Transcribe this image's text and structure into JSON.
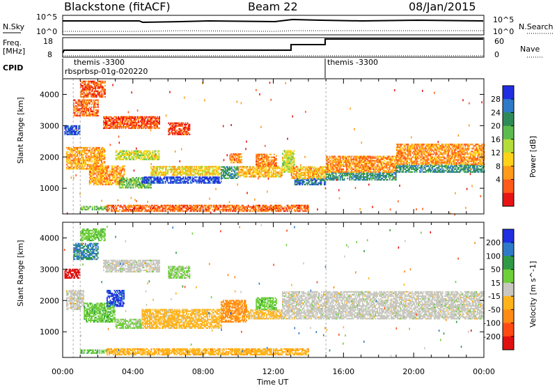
{
  "header": {
    "station": "Blackstone (fitACF)",
    "beam": "Beam 22",
    "date": "08/Jan/2015"
  },
  "top_panels": {
    "nsky_label": "N.Sky",
    "nsky_ticks": [
      "10^5",
      "10^0"
    ],
    "nsky_right_ticks": [
      "10^5",
      "10^0"
    ],
    "nsearch_label": "N.Search",
    "freq_label": "Freq.",
    "freq_unit": "[MHz]",
    "freq_ticks": [
      "18",
      "8"
    ],
    "nave_label": "Nave",
    "nave_ticks": [
      "60",
      "0"
    ],
    "cpid_label": "CPID",
    "cpid_entries": [
      {
        "text": "themis -3300"
      },
      {
        "text": "rbsprbsp-01g-020220"
      },
      {
        "text": "themis -3300"
      }
    ]
  },
  "colors": {
    "power_scale": [
      "#1f2ee0",
      "#2f7ac8",
      "#2e8b57",
      "#5dbb4e",
      "#b4dd3a",
      "#ffd21a",
      "#ff9a1a",
      "#ff5a1a",
      "#e81414"
    ],
    "velocity_scale": [
      "#1f2ee0",
      "#2f7ac8",
      "#2e9a46",
      "#6fcf3a",
      "#c8c8c0",
      "#ffb31a",
      "#ff8a14",
      "#ff4a14",
      "#e01010"
    ]
  },
  "chart_data": [
    {
      "type": "heatmap",
      "title": "Power",
      "ylabel": "Slant Range [km]",
      "xlabel": "Time UT",
      "x_ticks": [
        "00:00",
        "04:00",
        "08:00",
        "12:00",
        "16:00",
        "20:00",
        "00:00"
      ],
      "x_range_hours": [
        0,
        24
      ],
      "y_ticks": [
        1000,
        2000,
        3000,
        4000
      ],
      "y_range_km": [
        180,
        4500
      ],
      "colorbar_label": "Power [dB]",
      "colorbar_ticks": [
        "28",
        "24",
        "20",
        "16",
        "12",
        "8",
        "4"
      ],
      "colorbar_range": [
        0,
        30
      ],
      "echo_bands": [
        {
          "t0": 0.1,
          "t1": 1.0,
          "r0": 2700,
          "r1": 3000,
          "level": 27
        },
        {
          "t0": 0.2,
          "t1": 2.4,
          "r0": 1600,
          "r1": 2300,
          "level": 9
        },
        {
          "t0": 0.6,
          "t1": 2.0,
          "r0": 3300,
          "r1": 3800,
          "level": 6
        },
        {
          "t0": 1.0,
          "t1": 2.4,
          "r0": 3900,
          "r1": 4400,
          "level": 5
        },
        {
          "t0": 2.3,
          "t1": 5.5,
          "r0": 2900,
          "r1": 3300,
          "level": 5
        },
        {
          "t0": 6.0,
          "t1": 7.2,
          "r0": 2700,
          "r1": 3100,
          "level": 4
        },
        {
          "t0": 1.5,
          "t1": 3.5,
          "r0": 1100,
          "r1": 1700,
          "level": 9
        },
        {
          "t0": 3.2,
          "t1": 5.0,
          "r0": 1000,
          "r1": 1350,
          "level": 18
        },
        {
          "t0": 3.0,
          "t1": 5.5,
          "r0": 1900,
          "r1": 2200,
          "level": 14
        },
        {
          "t0": 4.5,
          "t1": 9.0,
          "r0": 1150,
          "r1": 1350,
          "level": 28
        },
        {
          "t0": 5.0,
          "t1": 9.0,
          "r0": 1400,
          "r1": 1700,
          "level": 12
        },
        {
          "t0": 9.0,
          "t1": 10.0,
          "r0": 1300,
          "r1": 1700,
          "level": 22
        },
        {
          "t0": 9.5,
          "t1": 10.2,
          "r0": 1800,
          "r1": 2100,
          "level": 8
        },
        {
          "t0": 10.0,
          "t1": 12.5,
          "r0": 1350,
          "r1": 1700,
          "level": 10
        },
        {
          "t0": 11.0,
          "t1": 12.2,
          "r0": 1700,
          "r1": 2100,
          "level": 7
        },
        {
          "t0": 12.5,
          "t1": 13.2,
          "r0": 1500,
          "r1": 2200,
          "level": 14
        },
        {
          "t0": 13.2,
          "t1": 15.0,
          "r0": 1100,
          "r1": 1300,
          "level": 24
        },
        {
          "t0": 13.0,
          "t1": 15.0,
          "r0": 1300,
          "r1": 1700,
          "level": 10
        },
        {
          "t0": 15.0,
          "t1": 19.0,
          "r0": 1250,
          "r1": 1500,
          "level": 22
        },
        {
          "t0": 15.0,
          "t1": 19.0,
          "r0": 1500,
          "r1": 2000,
          "level": 8
        },
        {
          "t0": 19.0,
          "t1": 24.0,
          "r0": 1500,
          "r1": 1750,
          "level": 22
        },
        {
          "t0": 19.0,
          "t1": 24.0,
          "r0": 1750,
          "r1": 2400,
          "level": 8
        },
        {
          "t0": 1.0,
          "t1": 2.5,
          "r0": 300,
          "r1": 420,
          "level": 18
        },
        {
          "t0": 2.5,
          "t1": 14.0,
          "r0": 250,
          "r1": 450,
          "level": 6
        }
      ]
    },
    {
      "type": "heatmap",
      "title": "Velocity",
      "ylabel": "Slant Range [km]",
      "xlabel": "Time UT",
      "x_ticks": [
        "00:00",
        "04:00",
        "08:00",
        "12:00",
        "16:00",
        "20:00",
        "00:00"
      ],
      "x_range_hours": [
        0,
        24
      ],
      "y_ticks": [
        1000,
        2000,
        3000,
        4000
      ],
      "y_range_km": [
        180,
        4500
      ],
      "colorbar_label": "Velocity [m s^-1]",
      "colorbar_ticks": [
        "200",
        "100",
        "50",
        "15",
        "-15",
        "-50",
        "-100",
        "-200"
      ],
      "colorbar_range": [
        -250,
        250
      ],
      "echo_bands": [
        {
          "t0": 0.1,
          "t1": 1.0,
          "r0": 2700,
          "r1": 3000,
          "level": -230
        },
        {
          "t0": 0.2,
          "t1": 1.2,
          "r0": 1700,
          "r1": 2300,
          "level": 0
        },
        {
          "t0": 0.6,
          "t1": 2.0,
          "r0": 3300,
          "r1": 3800,
          "level": 150
        },
        {
          "t0": 1.0,
          "t1": 2.4,
          "r0": 3900,
          "r1": 4300,
          "level": 60
        },
        {
          "t0": 2.3,
          "t1": 5.5,
          "r0": 2900,
          "r1": 3300,
          "level": 0
        },
        {
          "t0": 6.0,
          "t1": 7.2,
          "r0": 2700,
          "r1": 3100,
          "level": 40
        },
        {
          "t0": 1.2,
          "t1": 3.0,
          "r0": 1300,
          "r1": 1900,
          "level": 60
        },
        {
          "t0": 2.5,
          "t1": 3.5,
          "r0": 1800,
          "r1": 2300,
          "level": 200
        },
        {
          "t0": 3.0,
          "t1": 4.5,
          "r0": 1100,
          "r1": 1400,
          "level": 40
        },
        {
          "t0": 4.5,
          "t1": 9.0,
          "r0": 1100,
          "r1": 1700,
          "level": -50
        },
        {
          "t0": 9.0,
          "t1": 10.5,
          "r0": 1300,
          "r1": 2000,
          "level": -100
        },
        {
          "t0": 10.5,
          "t1": 12.5,
          "r0": 1400,
          "r1": 1700,
          "level": -45
        },
        {
          "t0": 11.0,
          "t1": 12.2,
          "r0": 1700,
          "r1": 2100,
          "level": 60
        },
        {
          "t0": 12.5,
          "t1": 24.0,
          "r0": 1400,
          "r1": 2300,
          "level": 0
        },
        {
          "t0": 1.0,
          "t1": 2.5,
          "r0": 300,
          "r1": 420,
          "level": 70
        },
        {
          "t0": 2.5,
          "t1": 14.0,
          "r0": 250,
          "r1": 450,
          "level": -60
        }
      ]
    }
  ]
}
